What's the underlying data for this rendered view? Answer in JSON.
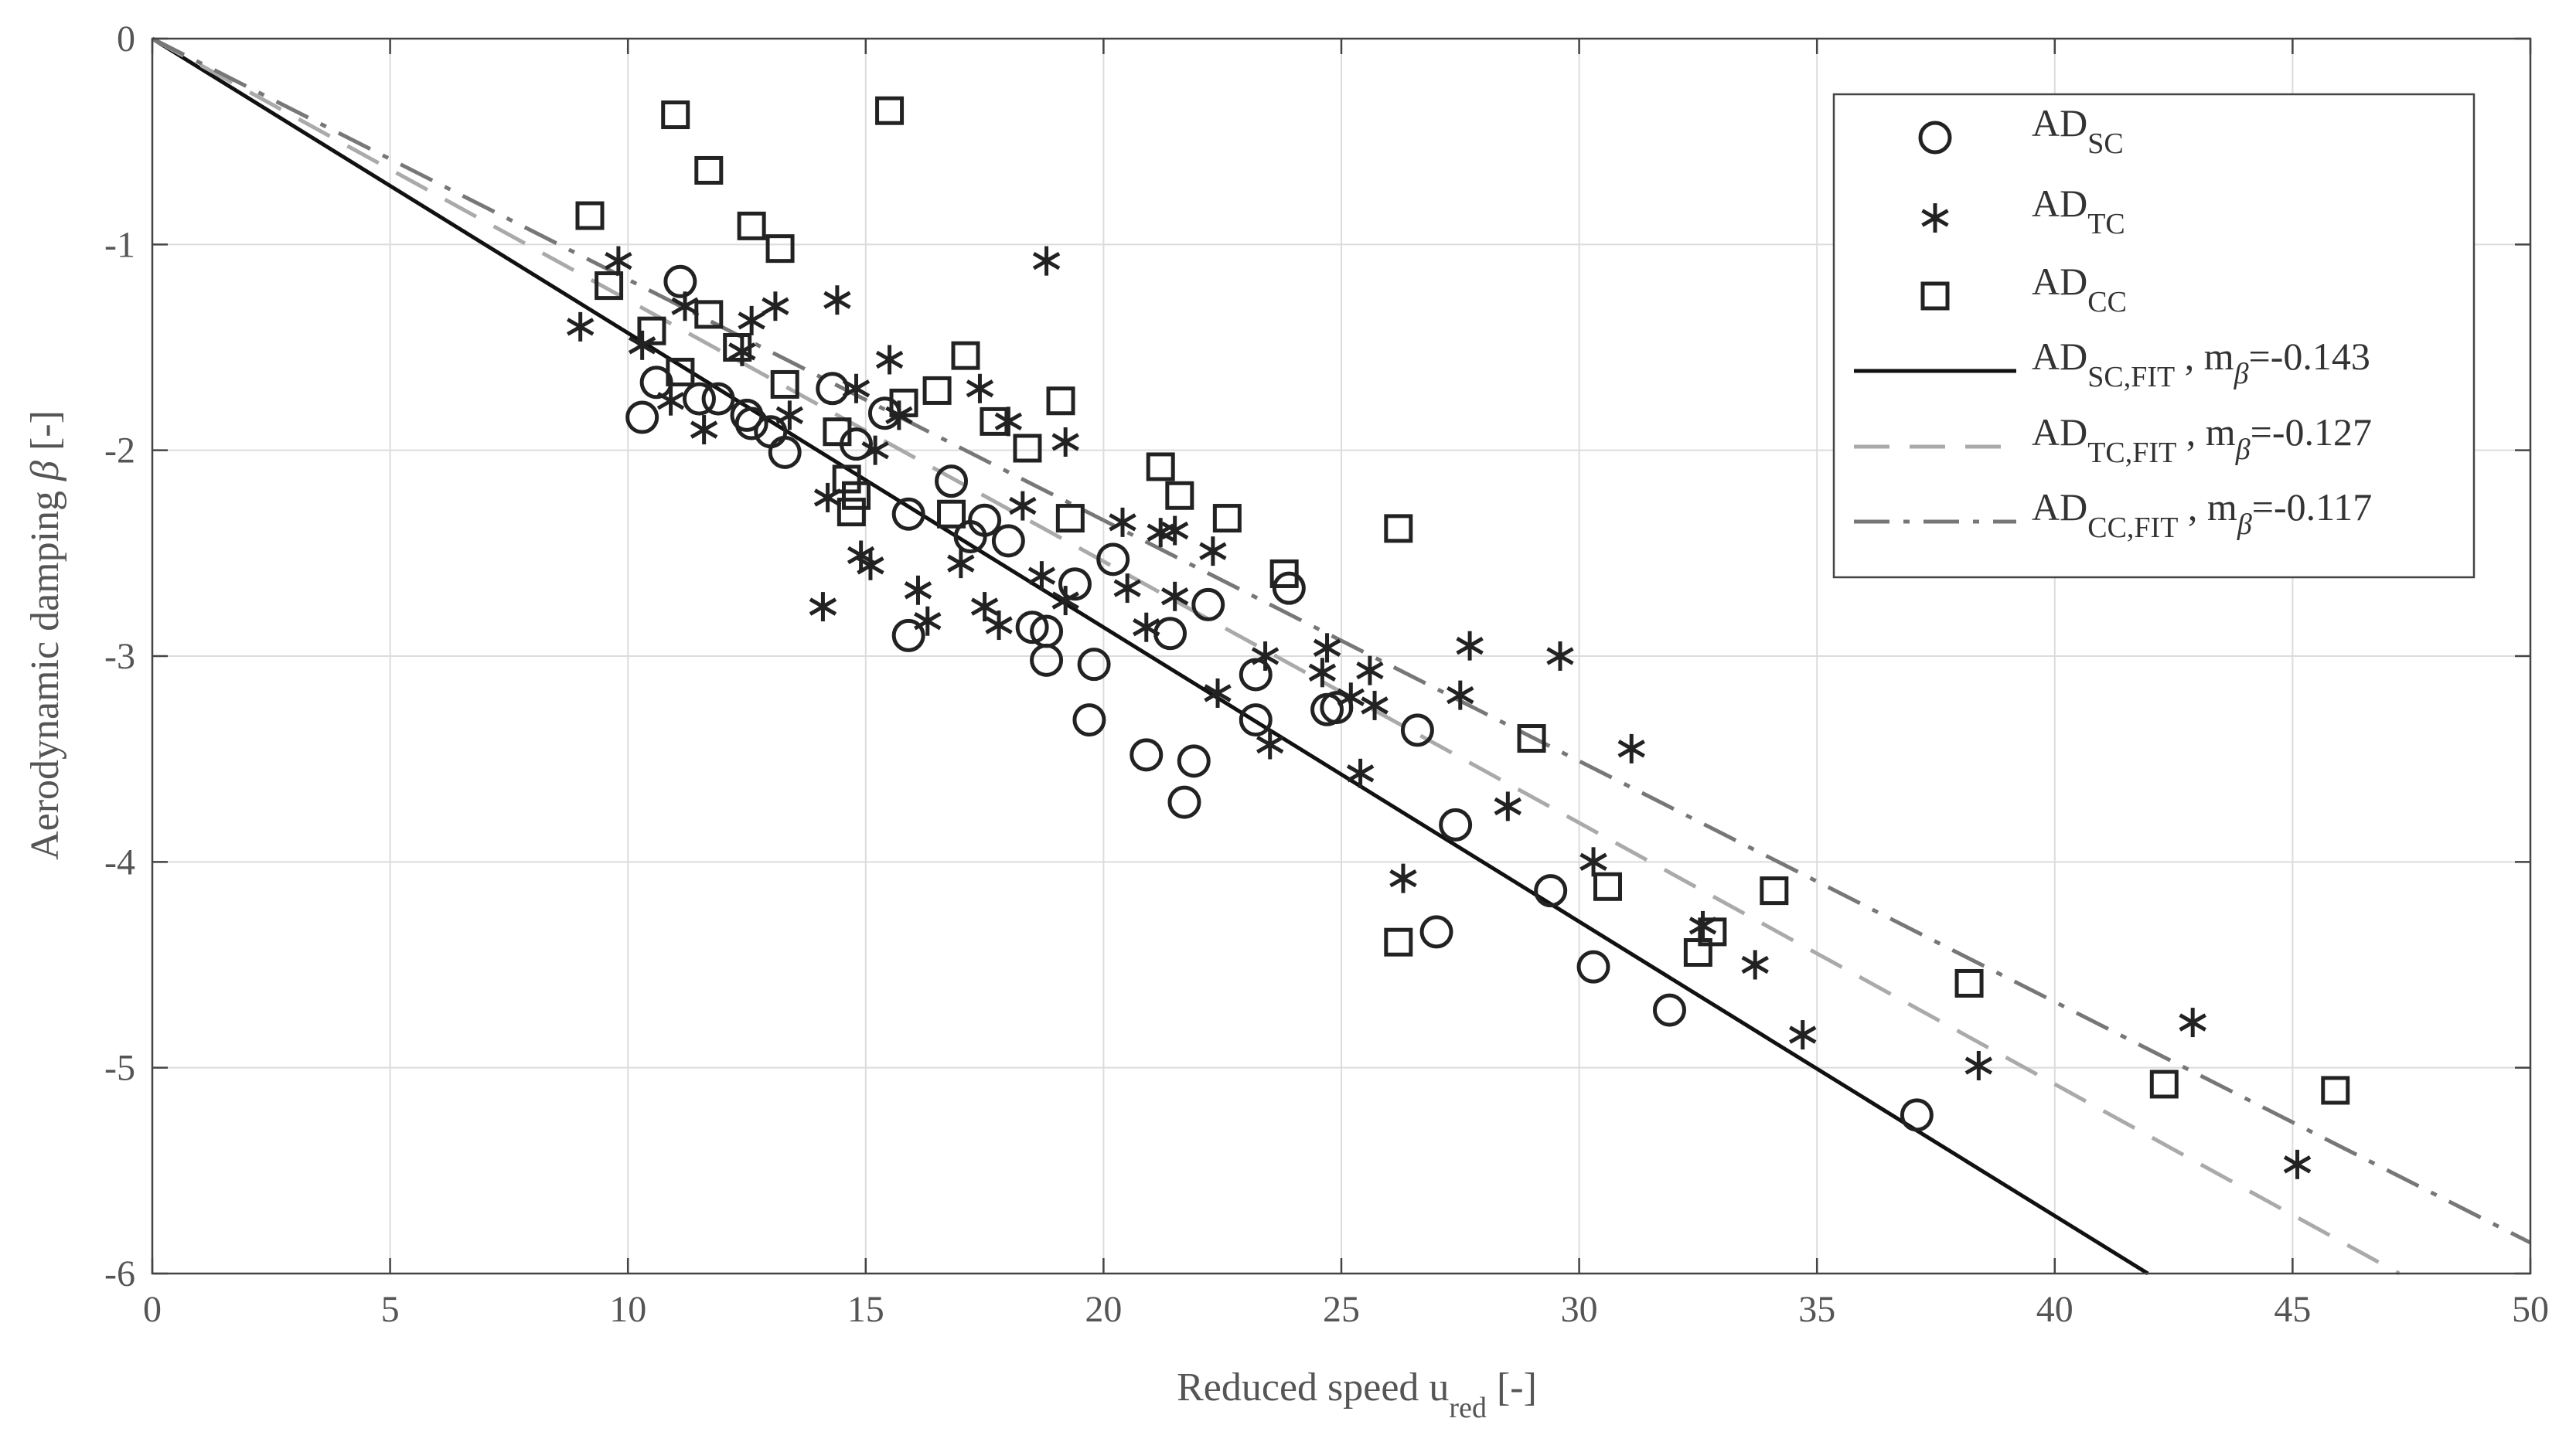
{
  "chart_data": {
    "type": "scatter",
    "title": "",
    "xlabel": {
      "main": "Reduced speed u",
      "sub": "red",
      "unit": " [-]"
    },
    "ylabel": {
      "main": "Aerodynamic damping ",
      "symbol": "β",
      "unit": " [-]"
    },
    "xlim": [
      0,
      50
    ],
    "ylim": [
      -6,
      0
    ],
    "xticks": [
      0,
      5,
      10,
      15,
      20,
      25,
      30,
      35,
      40,
      45,
      50
    ],
    "yticks": [
      0,
      -1,
      -2,
      -3,
      -4,
      -5,
      -6
    ],
    "grid": true,
    "legend_position": "top-right",
    "series": [
      {
        "name": "AD_SC",
        "legend": {
          "main": "AD",
          "sub": "SC"
        },
        "marker": "circle",
        "color": "#222222",
        "points": [
          [
            10.3,
            -1.84
          ],
          [
            10.6,
            -1.67
          ],
          [
            11.1,
            -1.18
          ],
          [
            11.5,
            -1.75
          ],
          [
            11.9,
            -1.75
          ],
          [
            12.5,
            -1.83
          ],
          [
            12.6,
            -1.87
          ],
          [
            13.0,
            -1.91
          ],
          [
            13.3,
            -2.01
          ],
          [
            14.3,
            -1.7
          ],
          [
            14.8,
            -1.97
          ],
          [
            15.4,
            -1.82
          ],
          [
            15.9,
            -2.31
          ],
          [
            15.9,
            -2.9
          ],
          [
            16.8,
            -2.15
          ],
          [
            17.2,
            -2.42
          ],
          [
            17.5,
            -2.34
          ],
          [
            18.0,
            -2.44
          ],
          [
            18.5,
            -2.86
          ],
          [
            18.8,
            -3.02
          ],
          [
            18.8,
            -2.88
          ],
          [
            19.4,
            -2.65
          ],
          [
            19.7,
            -3.31
          ],
          [
            19.8,
            -3.04
          ],
          [
            20.2,
            -2.53
          ],
          [
            20.9,
            -3.48
          ],
          [
            21.4,
            -2.89
          ],
          [
            21.7,
            -3.71
          ],
          [
            21.9,
            -3.51
          ],
          [
            22.2,
            -2.75
          ],
          [
            23.2,
            -3.09
          ],
          [
            23.2,
            -3.31
          ],
          [
            23.9,
            -2.67
          ],
          [
            24.7,
            -3.26
          ],
          [
            24.9,
            -3.25
          ],
          [
            26.6,
            -3.36
          ],
          [
            27.0,
            -4.34
          ],
          [
            27.4,
            -3.82
          ],
          [
            29.4,
            -4.14
          ],
          [
            30.3,
            -4.51
          ],
          [
            31.9,
            -4.72
          ],
          [
            37.1,
            -5.23
          ]
        ]
      },
      {
        "name": "AD_TC",
        "legend": {
          "main": "AD",
          "sub": "TC"
        },
        "marker": "asterisk",
        "color": "#222222",
        "points": [
          [
            9.0,
            -1.4
          ],
          [
            9.8,
            -1.08
          ],
          [
            10.3,
            -1.49
          ],
          [
            10.9,
            -1.76
          ],
          [
            11.2,
            -1.3
          ],
          [
            11.6,
            -1.9
          ],
          [
            12.6,
            -1.37
          ],
          [
            12.4,
            -1.52
          ],
          [
            13.1,
            -1.3
          ],
          [
            13.4,
            -1.83
          ],
          [
            14.2,
            -2.23
          ],
          [
            14.1,
            -2.76
          ],
          [
            14.4,
            -1.27
          ],
          [
            14.8,
            -1.7
          ],
          [
            14.9,
            -2.51
          ],
          [
            15.1,
            -2.56
          ],
          [
            15.2,
            -2.0
          ],
          [
            15.5,
            -1.56
          ],
          [
            15.7,
            -1.83
          ],
          [
            16.1,
            -2.68
          ],
          [
            16.3,
            -2.83
          ],
          [
            17.0,
            -2.55
          ],
          [
            17.4,
            -1.7
          ],
          [
            17.5,
            -2.76
          ],
          [
            17.8,
            -2.85
          ],
          [
            18.0,
            -1.86
          ],
          [
            18.3,
            -2.27
          ],
          [
            18.7,
            -2.61
          ],
          [
            18.8,
            -1.08
          ],
          [
            19.2,
            -1.96
          ],
          [
            19.2,
            -2.73
          ],
          [
            20.4,
            -2.35
          ],
          [
            20.5,
            -2.67
          ],
          [
            20.9,
            -2.86
          ],
          [
            21.2,
            -2.4
          ],
          [
            21.5,
            -2.71
          ],
          [
            21.5,
            -2.39
          ],
          [
            22.3,
            -2.49
          ],
          [
            22.4,
            -3.18
          ],
          [
            23.4,
            -3.0
          ],
          [
            23.5,
            -3.43
          ],
          [
            24.6,
            -3.08
          ],
          [
            24.7,
            -2.96
          ],
          [
            25.2,
            -3.2
          ],
          [
            25.6,
            -3.07
          ],
          [
            25.4,
            -3.57
          ],
          [
            25.7,
            -3.24
          ],
          [
            26.3,
            -4.08
          ],
          [
            27.5,
            -3.19
          ],
          [
            27.7,
            -2.95
          ],
          [
            28.5,
            -3.73
          ],
          [
            29.6,
            -3.0
          ],
          [
            30.3,
            -4.0
          ],
          [
            31.1,
            -3.45
          ],
          [
            32.6,
            -4.31
          ],
          [
            33.7,
            -4.5
          ],
          [
            34.7,
            -4.84
          ],
          [
            38.4,
            -4.99
          ],
          [
            42.9,
            -4.78
          ],
          [
            45.1,
            -5.47
          ]
        ]
      },
      {
        "name": "AD_CC",
        "legend": {
          "main": "AD",
          "sub": "CC"
        },
        "marker": "square",
        "color": "#222222",
        "points": [
          [
            9.2,
            -0.86
          ],
          [
            9.6,
            -1.2
          ],
          [
            10.5,
            -1.42
          ],
          [
            11.0,
            -0.37
          ],
          [
            11.1,
            -1.62
          ],
          [
            11.7,
            -0.64
          ],
          [
            11.7,
            -1.34
          ],
          [
            12.3,
            -1.5
          ],
          [
            12.6,
            -0.91
          ],
          [
            13.2,
            -1.02
          ],
          [
            13.3,
            -1.68
          ],
          [
            14.4,
            -1.91
          ],
          [
            14.6,
            -2.14
          ],
          [
            14.7,
            -2.3
          ],
          [
            14.8,
            -2.22
          ],
          [
            15.5,
            -0.35
          ],
          [
            15.8,
            -1.77
          ],
          [
            16.5,
            -1.71
          ],
          [
            16.8,
            -2.31
          ],
          [
            17.1,
            -1.54
          ],
          [
            17.7,
            -1.86
          ],
          [
            18.4,
            -1.99
          ],
          [
            19.1,
            -1.76
          ],
          [
            19.3,
            -2.33
          ],
          [
            21.2,
            -2.08
          ],
          [
            21.6,
            -2.22
          ],
          [
            22.6,
            -2.33
          ],
          [
            23.8,
            -2.6
          ],
          [
            26.2,
            -2.38
          ],
          [
            26.2,
            -4.39
          ],
          [
            29.0,
            -3.4
          ],
          [
            30.6,
            -4.12
          ],
          [
            32.5,
            -4.44
          ],
          [
            32.8,
            -4.34
          ],
          [
            34.1,
            -4.14
          ],
          [
            38.2,
            -4.59
          ],
          [
            42.3,
            -5.08
          ],
          [
            45.9,
            -5.11
          ]
        ]
      },
      {
        "name": "AD_SC,FIT",
        "legend": {
          "main": "AD",
          "sub": "SC,FIT",
          "slope_label": " , m",
          "slope_sub": "β",
          "slope_value": "=-0.143"
        },
        "type": "line",
        "slope": -0.143,
        "style": "solid",
        "color": "#111111"
      },
      {
        "name": "AD_TC,FIT",
        "legend": {
          "main": "AD",
          "sub": "TC,FIT",
          "slope_label": " , m",
          "slope_sub": "β",
          "slope_value": "=-0.127"
        },
        "type": "line",
        "slope": -0.127,
        "style": "dashed",
        "color": "#aaaaaa"
      },
      {
        "name": "AD_CC,FIT",
        "legend": {
          "main": "AD",
          "sub": "CC,FIT",
          "slope_label": " , m",
          "slope_sub": "β",
          "slope_value": "=-0.117"
        },
        "type": "line",
        "slope": -0.117,
        "style": "dashdot",
        "color": "#777777"
      }
    ]
  }
}
